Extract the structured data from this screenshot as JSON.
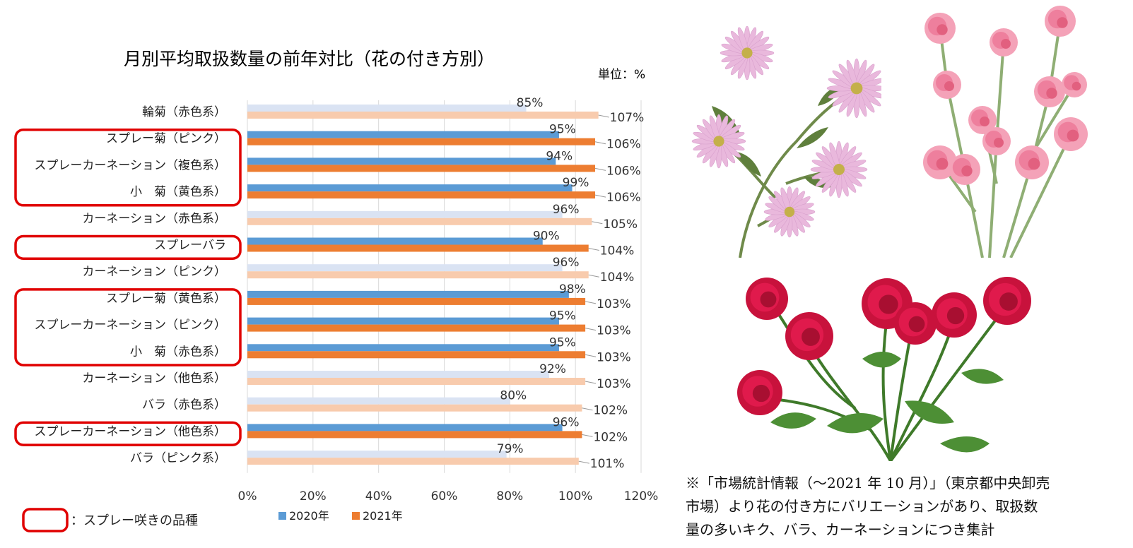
{
  "chart_data": {
    "type": "bar",
    "orientation": "horizontal",
    "title": "月別平均取扱数量の前年対比（花の付き方別）",
    "unit_label": "単位：%",
    "categories": [
      "輪菊（赤色系）",
      "スプレー菊（ピンク）",
      "スプレーカーネーション（複色系）",
      "小　菊（黄色系）",
      "カーネーション（赤色系）",
      "スプレーバラ",
      "カーネーション（ピンク）",
      "スプレー菊（黄色系）",
      "スプレーカーネーション（ピンク）",
      "小　菊（赤色系）",
      "カーネーション（他色系）",
      "バラ（赤色系）",
      "スプレーカーネーション（他色系）",
      "バラ（ピンク系）"
    ],
    "series": [
      {
        "name": "2020年",
        "values": [
          85,
          95,
          94,
          99,
          96,
          90,
          96,
          98,
          95,
          95,
          92,
          80,
          96,
          79
        ]
      },
      {
        "name": "2021年",
        "values": [
          107,
          106,
          106,
          106,
          105,
          104,
          104,
          103,
          103,
          103,
          103,
          102,
          102,
          101
        ]
      }
    ],
    "data_labels": [
      [
        "85%",
        "95%",
        "94%",
        "99%",
        "96%",
        "90%",
        "96%",
        "98%",
        "95%",
        "95%",
        "92%",
        "80%",
        "96%",
        "79%"
      ],
      [
        "107%",
        "106%",
        "106%",
        "106%",
        "105%",
        "104%",
        "104%",
        "103%",
        "103%",
        "103%",
        "103%",
        "102%",
        "102%",
        "101%"
      ]
    ],
    "spray_flags": [
      false,
      true,
      true,
      true,
      false,
      true,
      false,
      true,
      true,
      true,
      false,
      false,
      true,
      false
    ],
    "xlim": [
      0,
      120
    ],
    "xticks": [
      "0%",
      "20%",
      "40%",
      "60%",
      "80%",
      "100%",
      "120%"
    ],
    "grid": true,
    "legend_position": "bottom",
    "colors": {
      "series_2020": "#5b9bd5",
      "series_2021": "#ed7d31",
      "series_2020_light": "#dae3f3",
      "series_2021_light": "#f8cbad",
      "highlight_frame": "#e00000"
    }
  },
  "legend_note": "：スプレー咲きの品種",
  "source_note": [
    "※「市場統計情報（～2021 年 10 月）」（東京都中央卸売",
    "市場）より花の付き方にバリエーションがあり、取扱数",
    "量の多いキク、バラ、カーネーションにつき集計"
  ]
}
